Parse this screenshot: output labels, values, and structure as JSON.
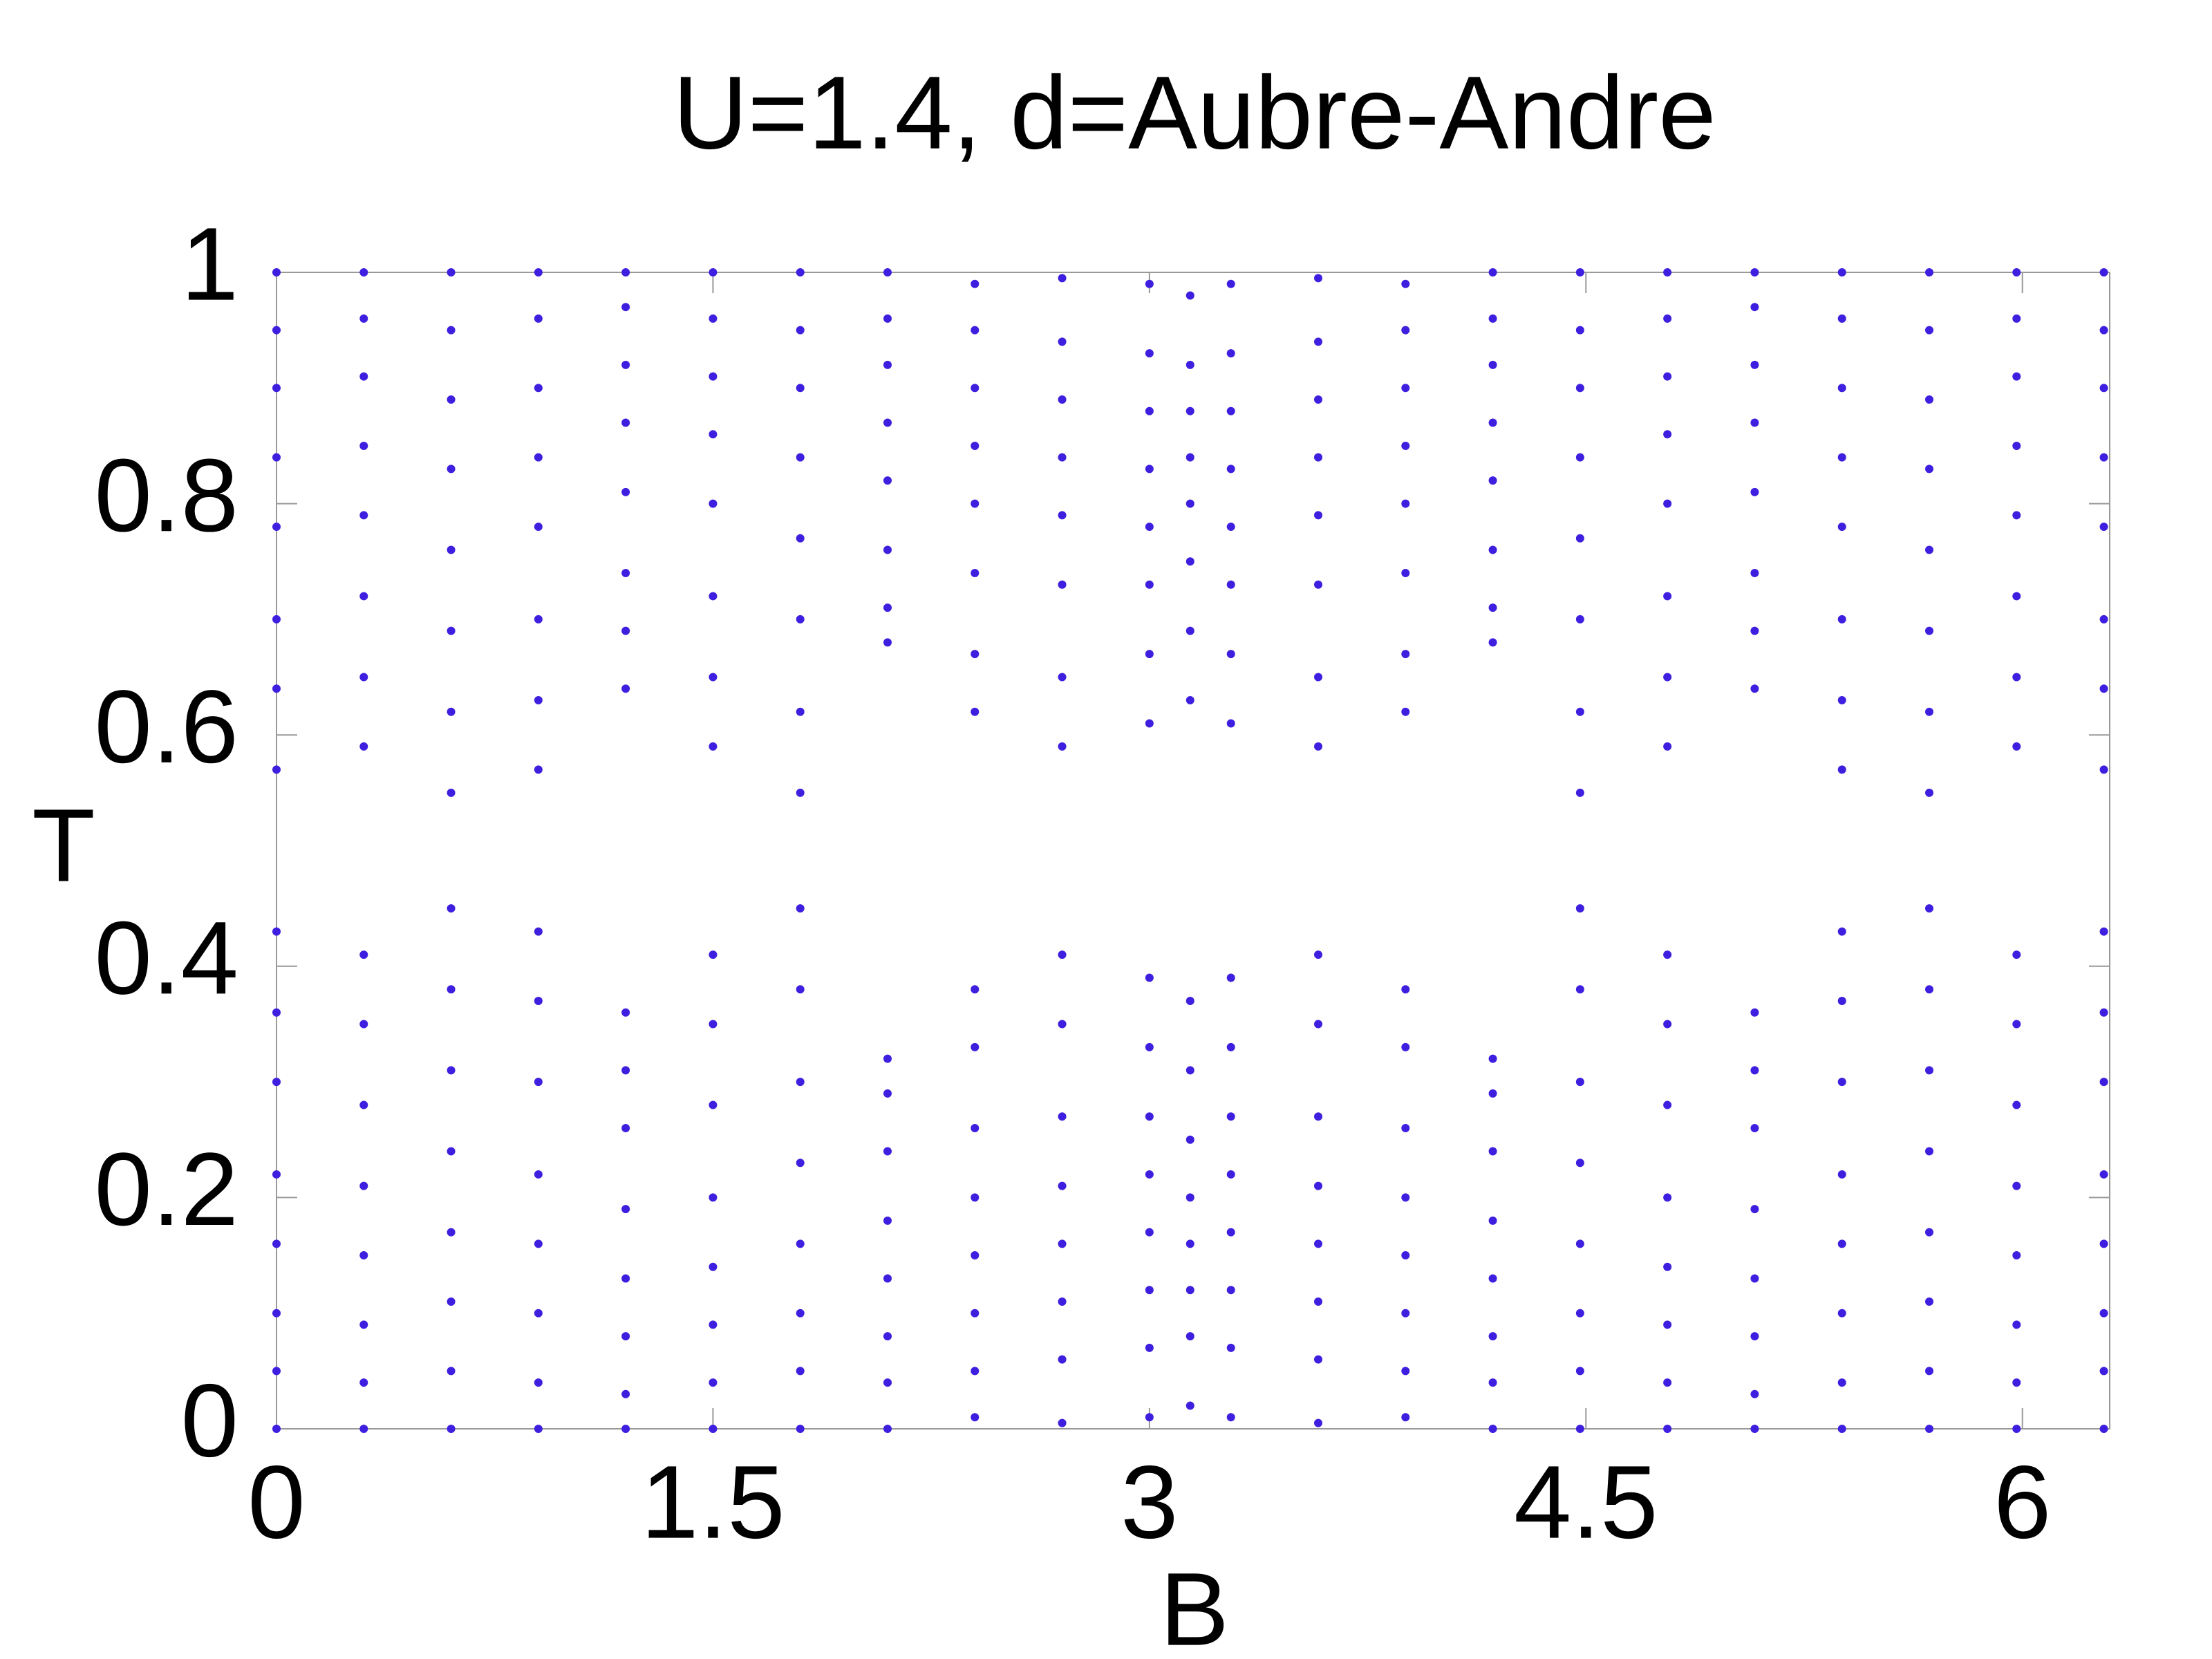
{
  "chart_data": {
    "type": "scatter",
    "title": "U=1.4, d=Aubre-Andre",
    "x_label": "B",
    "y_label": "T",
    "color": "#3f1fdf",
    "xlim": [
      0,
      6.3
    ],
    "ylim": [
      0,
      1
    ],
    "xticks": [
      0,
      1.5,
      3,
      4.5,
      6
    ],
    "yticks": [
      0,
      0.2,
      0.4,
      0.6,
      0.8,
      1
    ],
    "x": [
      0,
      0,
      0,
      0,
      0,
      0,
      0,
      0,
      0,
      0,
      0,
      0,
      0,
      0,
      0,
      0,
      0.3,
      0.3,
      0.3,
      0.3,
      0.3,
      0.3,
      0.3,
      0.3,
      0.3,
      0.3,
      0.3,
      0.3,
      0.3,
      0.3,
      0.3,
      0.3,
      0.6,
      0.6,
      0.6,
      0.6,
      0.6,
      0.6,
      0.6,
      0.6,
      0.6,
      0.6,
      0.6,
      0.6,
      0.6,
      0.6,
      0.6,
      0.6,
      0.9,
      0.9,
      0.9,
      0.9,
      0.9,
      0.9,
      0.9,
      0.9,
      0.9,
      0.9,
      0.9,
      0.9,
      0.9,
      0.9,
      0.9,
      0.9,
      1.2,
      1.2,
      1.2,
      1.2,
      1.2,
      1.2,
      1.2,
      1.2,
      1.2,
      1.2,
      1.2,
      1.2,
      1.2,
      1.2,
      1.2,
      1.2,
      1.5,
      1.5,
      1.5,
      1.5,
      1.5,
      1.5,
      1.5,
      1.5,
      1.5,
      1.5,
      1.5,
      1.5,
      1.5,
      1.5,
      1.5,
      1.5,
      1.8,
      1.8,
      1.8,
      1.8,
      1.8,
      1.8,
      1.8,
      1.8,
      1.8,
      1.8,
      1.8,
      1.8,
      1.8,
      1.8,
      1.8,
      1.8,
      2.1,
      2.1,
      2.1,
      2.1,
      2.1,
      2.1,
      2.1,
      2.1,
      2.1,
      2.1,
      2.1,
      2.1,
      2.1,
      2.1,
      2.1,
      2.1,
      2.4,
      2.4,
      2.4,
      2.4,
      2.4,
      2.4,
      2.4,
      2.4,
      2.4,
      2.4,
      2.4,
      2.4,
      2.4,
      2.4,
      2.4,
      2.4,
      2.7,
      2.7,
      2.7,
      2.7,
      2.7,
      2.7,
      2.7,
      2.7,
      2.7,
      2.7,
      2.7,
      2.7,
      2.7,
      2.7,
      2.7,
      2.7,
      3.0,
      3.0,
      3.0,
      3.0,
      3.0,
      3.0,
      3.0,
      3.0,
      3.0,
      3.0,
      3.0,
      3.0,
      3.0,
      3.0,
      3.0,
      3.0,
      3.14,
      3.14,
      3.14,
      3.14,
      3.14,
      3.14,
      3.14,
      3.14,
      3.14,
      3.14,
      3.14,
      3.14,
      3.14,
      3.14,
      3.14,
      3.14,
      3.28,
      3.28,
      3.28,
      3.28,
      3.28,
      3.28,
      3.28,
      3.28,
      3.28,
      3.28,
      3.28,
      3.28,
      3.28,
      3.28,
      3.28,
      3.28,
      3.58,
      3.58,
      3.58,
      3.58,
      3.58,
      3.58,
      3.58,
      3.58,
      3.58,
      3.58,
      3.58,
      3.58,
      3.58,
      3.58,
      3.58,
      3.58,
      3.88,
      3.88,
      3.88,
      3.88,
      3.88,
      3.88,
      3.88,
      3.88,
      3.88,
      3.88,
      3.88,
      3.88,
      3.88,
      3.88,
      3.88,
      3.88,
      4.18,
      4.18,
      4.18,
      4.18,
      4.18,
      4.18,
      4.18,
      4.18,
      4.18,
      4.18,
      4.18,
      4.18,
      4.18,
      4.18,
      4.18,
      4.18,
      4.48,
      4.48,
      4.48,
      4.48,
      4.48,
      4.48,
      4.48,
      4.48,
      4.48,
      4.48,
      4.48,
      4.48,
      4.48,
      4.48,
      4.48,
      4.48,
      4.78,
      4.78,
      4.78,
      4.78,
      4.78,
      4.78,
      4.78,
      4.78,
      4.78,
      4.78,
      4.78,
      4.78,
      4.78,
      4.78,
      4.78,
      4.78,
      5.08,
      5.08,
      5.08,
      5.08,
      5.08,
      5.08,
      5.08,
      5.08,
      5.08,
      5.08,
      5.08,
      5.08,
      5.08,
      5.08,
      5.08,
      5.08,
      5.38,
      5.38,
      5.38,
      5.38,
      5.38,
      5.38,
      5.38,
      5.38,
      5.38,
      5.38,
      5.38,
      5.38,
      5.38,
      5.38,
      5.38,
      5.38,
      5.68,
      5.68,
      5.68,
      5.68,
      5.68,
      5.68,
      5.68,
      5.68,
      5.68,
      5.68,
      5.68,
      5.68,
      5.68,
      5.68,
      5.68,
      5.68,
      5.98,
      5.98,
      5.98,
      5.98,
      5.98,
      5.98,
      5.98,
      5.98,
      5.98,
      5.98,
      5.98,
      5.98,
      5.98,
      5.98,
      5.98,
      5.98,
      6.28,
      6.28,
      6.28,
      6.28,
      6.28,
      6.28,
      6.28,
      6.28,
      6.28,
      6.28,
      6.28,
      6.28,
      6.28,
      6.28,
      6.28,
      6.28
    ],
    "values": [
      0,
      0.05,
      0.1,
      0.16,
      0.22,
      0.3,
      0.36,
      0.43,
      1,
      0.95,
      0.9,
      0.84,
      0.78,
      0.7,
      0.64,
      0.57,
      0,
      0.04,
      0.09,
      0.15,
      0.21,
      0.28,
      0.35,
      0.41,
      1,
      0.96,
      0.91,
      0.85,
      0.79,
      0.72,
      0.65,
      0.59,
      0,
      0.05,
      0.11,
      0.17,
      0.24,
      0.31,
      0.38,
      0.45,
      1,
      0.95,
      0.89,
      0.83,
      0.76,
      0.69,
      0.62,
      0.55,
      0,
      0.04,
      0.1,
      0.16,
      0.22,
      0.3,
      0.37,
      0.43,
      1,
      0.96,
      0.9,
      0.84,
      0.78,
      0.7,
      0.63,
      0.57,
      0,
      0.03,
      0.08,
      0.13,
      0.19,
      0.26,
      0.31,
      0.36,
      1,
      0.97,
      0.92,
      0.87,
      0.81,
      0.74,
      0.69,
      0.64,
      0,
      0.04,
      0.09,
      0.14,
      0.2,
      0.28,
      0.35,
      0.41,
      1,
      0.96,
      0.91,
      0.86,
      0.8,
      0.72,
      0.65,
      0.59,
      0,
      0.05,
      0.1,
      0.16,
      0.23,
      0.3,
      0.38,
      0.45,
      1,
      0.95,
      0.9,
      0.84,
      0.77,
      0.7,
      0.62,
      0.55,
      0,
      0.04,
      0.08,
      0.13,
      0.18,
      0.24,
      0.29,
      0.32,
      1,
      0.96,
      0.92,
      0.87,
      0.82,
      0.76,
      0.71,
      0.68,
      0.01,
      0.05,
      0.1,
      0.15,
      0.2,
      0.26,
      0.33,
      0.38,
      0.99,
      0.95,
      0.9,
      0.85,
      0.8,
      0.74,
      0.67,
      0.62,
      0.005,
      0.06,
      0.11,
      0.16,
      0.21,
      0.27,
      0.35,
      0.41,
      0.995,
      0.94,
      0.89,
      0.84,
      0.79,
      0.73,
      0.65,
      0.59,
      0.01,
      0.07,
      0.12,
      0.17,
      0.22,
      0.27,
      0.33,
      0.39,
      0.99,
      0.93,
      0.88,
      0.83,
      0.78,
      0.73,
      0.67,
      0.61,
      0.02,
      0.08,
      0.12,
      0.16,
      0.2,
      0.25,
      0.31,
      0.37,
      0.98,
      0.92,
      0.88,
      0.84,
      0.8,
      0.75,
      0.69,
      0.63,
      0.01,
      0.07,
      0.12,
      0.17,
      0.22,
      0.27,
      0.33,
      0.39,
      0.99,
      0.93,
      0.88,
      0.83,
      0.78,
      0.73,
      0.67,
      0.61,
      0.005,
      0.06,
      0.11,
      0.16,
      0.21,
      0.27,
      0.35,
      0.41,
      0.995,
      0.94,
      0.89,
      0.84,
      0.79,
      0.73,
      0.65,
      0.59,
      0.01,
      0.05,
      0.1,
      0.15,
      0.2,
      0.26,
      0.33,
      0.38,
      0.99,
      0.95,
      0.9,
      0.85,
      0.8,
      0.74,
      0.67,
      0.62,
      0,
      0.04,
      0.08,
      0.13,
      0.18,
      0.24,
      0.29,
      0.32,
      1,
      0.96,
      0.92,
      0.87,
      0.82,
      0.76,
      0.71,
      0.68,
      0,
      0.05,
      0.1,
      0.16,
      0.23,
      0.3,
      0.38,
      0.45,
      1,
      0.95,
      0.9,
      0.84,
      0.77,
      0.7,
      0.62,
      0.55,
      0,
      0.04,
      0.09,
      0.14,
      0.2,
      0.28,
      0.35,
      0.41,
      1,
      0.96,
      0.91,
      0.86,
      0.8,
      0.72,
      0.65,
      0.59,
      0,
      0.03,
      0.08,
      0.13,
      0.19,
      0.26,
      0.31,
      0.36,
      1,
      0.97,
      0.92,
      0.87,
      0.81,
      0.74,
      0.69,
      0.64,
      0,
      0.04,
      0.1,
      0.16,
      0.22,
      0.3,
      0.37,
      0.43,
      1,
      0.96,
      0.9,
      0.84,
      0.78,
      0.7,
      0.63,
      0.57,
      0,
      0.05,
      0.11,
      0.17,
      0.24,
      0.31,
      0.38,
      0.45,
      1,
      0.95,
      0.89,
      0.83,
      0.76,
      0.69,
      0.62,
      0.55,
      0,
      0.04,
      0.09,
      0.15,
      0.21,
      0.28,
      0.35,
      0.41,
      1,
      0.96,
      0.91,
      0.85,
      0.79,
      0.72,
      0.65,
      0.59,
      0,
      0.05,
      0.1,
      0.16,
      0.22,
      0.3,
      0.36,
      0.43,
      1,
      0.95,
      0.9,
      0.84,
      0.78,
      0.7,
      0.64,
      0.57
    ]
  }
}
